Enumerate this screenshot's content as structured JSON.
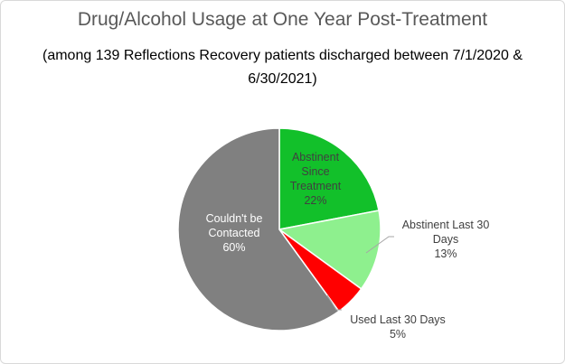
{
  "chart_data": {
    "type": "pie",
    "title": "Drug/Alcohol Usage at One Year Post-Treatment",
    "subtitle": "(among 139 Reflections Recovery patients discharged between 7/1/2020 & 6/30/2021)",
    "slices": [
      {
        "label_lines": [
          "Abstinent",
          "Since",
          "Treatment"
        ],
        "percent_label": "22%",
        "value": 22,
        "color": "#12c02a",
        "label_color": "#404040"
      },
      {
        "label_lines": [
          "Abstinent Last 30",
          "Days"
        ],
        "percent_label": "13%",
        "value": 13,
        "color": "#8ef08e",
        "label_color": "#404040"
      },
      {
        "label_lines": [
          "Used Last 30 Days"
        ],
        "percent_label": "5%",
        "value": 5,
        "color": "#ff0000",
        "label_color": "#404040"
      },
      {
        "label_lines": [
          "Couldn't be",
          "Contacted"
        ],
        "percent_label": "60%",
        "value": 60,
        "color": "#808080",
        "label_color": "#ffffff"
      }
    ]
  }
}
